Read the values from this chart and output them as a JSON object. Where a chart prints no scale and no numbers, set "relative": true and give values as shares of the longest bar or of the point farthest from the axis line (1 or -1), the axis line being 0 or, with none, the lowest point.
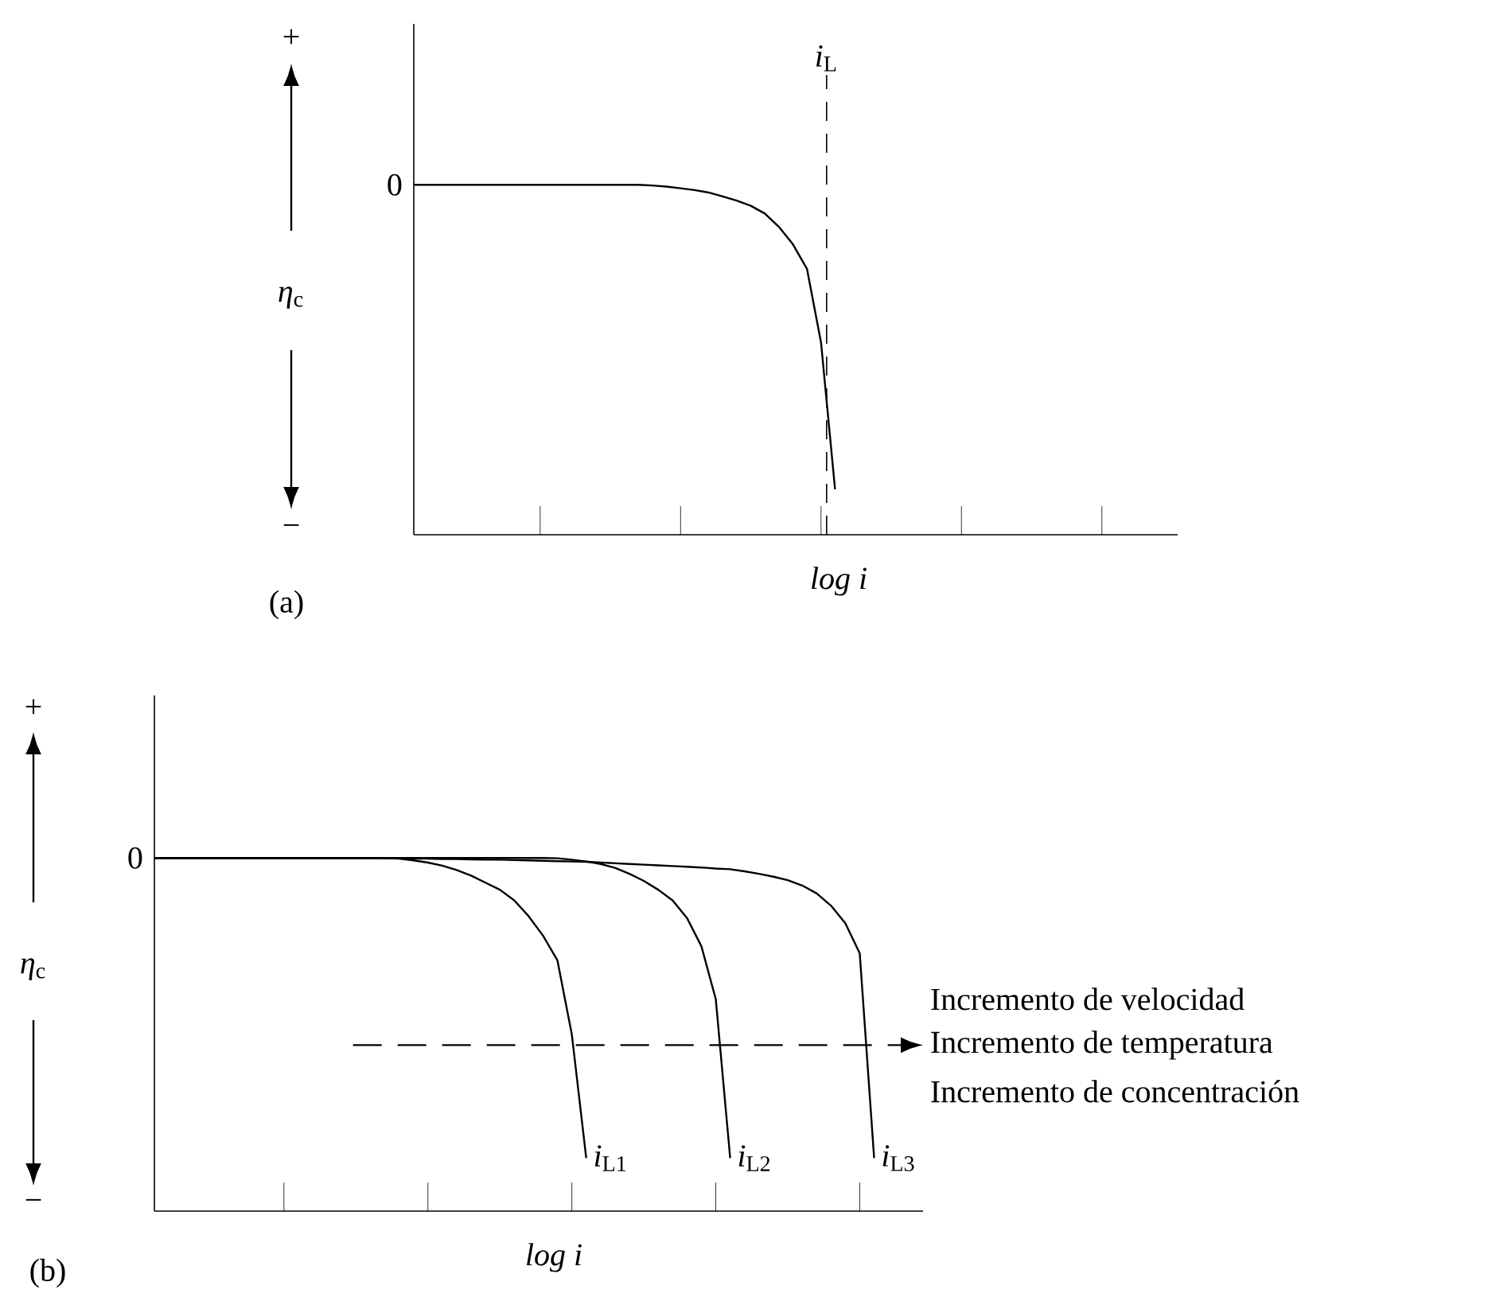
{
  "chart_data": [
    {
      "type": "line",
      "relative": true,
      "xlabel": "log i",
      "ylabel": "*η*$_{c}$",
      "line_style": "solid",
      "categories": [
        null,
        null,
        null,
        null,
        null,
        null,
        null,
        null,
        null,
        null,
        null,
        null,
        null,
        null,
        null,
        null,
        null,
        null,
        null,
        null,
        null,
        null,
        null,
        null,
        null,
        null,
        null,
        null,
        null,
        null,
        null,
        null,
        null,
        null,
        null,
        null,
        null,
        null,
        null,
        null,
        null,
        null,
        null,
        null,
        null,
        null,
        null,
        null,
        null,
        null,
        null,
        null,
        null,
        null,
        null
      ],
      "series": [
        {
          "color": "#000000",
          "values": [
            1,
            1,
            1,
            1,
            1,
            1,
            1,
            1,
            1,
            1,
            1,
            1,
            1,
            1,
            1,
            1,
            1,
            0.998,
            0.995,
            0.99,
            0.985,
            0.978,
            0.967,
            0.955,
            0.94,
            0.918,
            0.88,
            0.83,
            0.76,
            0.55,
            0.13,
            null,
            null,
            null,
            null,
            null,
            null,
            null,
            null,
            null,
            null,
            null,
            null,
            null,
            null,
            null,
            null,
            null,
            null,
            null,
            null,
            null,
            null,
            null,
            null
          ]
        }
      ],
      "ref_lines": [
        {
          "axis": "x",
          "label": "*i*$_{L}$",
          "line_style": "dashed"
        }
      ],
      "annotations": [
        "+",
        "−",
        "0",
        "(a)"
      ]
    },
    {
      "type": "line",
      "relative": true,
      "xlabel": "log i",
      "ylabel": "*η*$_{c}$",
      "line_style": "solid",
      "categories": [
        null,
        null,
        null,
        null,
        null,
        null,
        null,
        null,
        null,
        null,
        null,
        null,
        null,
        null,
        null,
        null,
        null,
        null,
        null,
        null,
        null,
        null,
        null,
        null,
        null,
        null,
        null,
        null,
        null,
        null,
        null,
        null,
        null,
        null,
        null,
        null,
        null,
        null,
        null,
        null,
        null,
        null,
        null,
        null,
        null,
        null,
        null,
        null,
        null,
        null,
        null,
        null,
        null,
        null
      ],
      "series": [
        {
          "name": "*i*$_{L1}$",
          "color": "#000000",
          "values": [
            1,
            1,
            1,
            1,
            1,
            1,
            1,
            1,
            1,
            1,
            1,
            1,
            1,
            1,
            1,
            1,
            1,
            0.998,
            0.993,
            0.987,
            0.978,
            0.966,
            0.95,
            0.93,
            0.91,
            0.88,
            0.835,
            0.78,
            0.71,
            0.5,
            0.15,
            null,
            null,
            null,
            null,
            null,
            null,
            null,
            null,
            null,
            null,
            null,
            null,
            null,
            null,
            null,
            null,
            null,
            null,
            null,
            null,
            null,
            null,
            null
          ]
        },
        {
          "name": "*i*$_{L2}$",
          "color": "#000000",
          "values": [
            1,
            1,
            1,
            1,
            1,
            1,
            1,
            1,
            1,
            1,
            1,
            1,
            1,
            1,
            1,
            1,
            1,
            1,
            1,
            1,
            1,
            1,
            1,
            1,
            1,
            1,
            1,
            1,
            0.999,
            0.995,
            0.99,
            0.983,
            0.972,
            0.955,
            0.935,
            0.91,
            0.88,
            0.83,
            0.75,
            0.6,
            0.15,
            null,
            null,
            null,
            null,
            null,
            null,
            null,
            null,
            null,
            null,
            null,
            null,
            null
          ]
        },
        {
          "name": "*i*$_{L3}$",
          "color": "#000000",
          "values": [
            1,
            1,
            1,
            1,
            1,
            1,
            1,
            1,
            1,
            1,
            1,
            1,
            1,
            1,
            1,
            1,
            0.999,
            0.999,
            0.998,
            0.998,
            0.997,
            0.997,
            0.996,
            0.995,
            0.995,
            0.994,
            0.993,
            0.992,
            0.991,
            0.99,
            0.989,
            0.987,
            0.985,
            0.983,
            0.981,
            0.979,
            0.977,
            0.975,
            0.973,
            0.97,
            0.968,
            0.962,
            0.955,
            0.947,
            0.937,
            0.922,
            0.9,
            0.865,
            0.815,
            0.73,
            0.15,
            null,
            null,
            null
          ]
        }
      ],
      "annotations": [
        "+",
        "−",
        "0",
        "(b)",
        "Incremento de velocidad",
        "Incremento de temperatura",
        "Incremento de concentración"
      ]
    }
  ]
}
